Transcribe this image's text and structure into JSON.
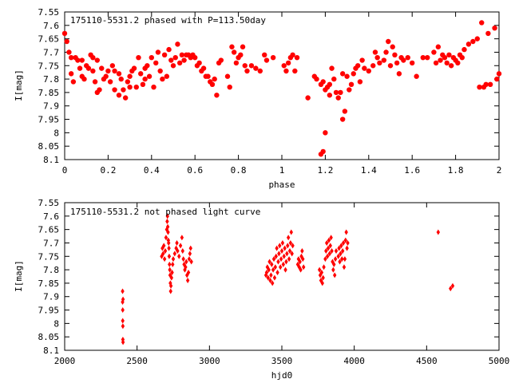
{
  "chart_data": [
    {
      "type": "scatter",
      "title": "175110-5531.2 phased with P=113.50day",
      "xlabel": "phase",
      "ylabel": "I[mag]",
      "xlim": [
        0,
        2
      ],
      "ylim": [
        8.1,
        7.55
      ],
      "y_inverted": true,
      "xticks": [
        0,
        0.2,
        0.4,
        0.6,
        0.8,
        1,
        1.2,
        1.4,
        1.6,
        1.8,
        2
      ],
      "xtick_labels": [
        "0",
        "0.2",
        "0.4",
        "0.6",
        "0.8",
        "1",
        "1.2",
        "1.4",
        "1.6",
        "1.8",
        "2"
      ],
      "yticks": [
        7.55,
        7.6,
        7.65,
        7.7,
        7.75,
        7.8,
        7.85,
        7.9,
        7.95,
        8,
        8.05,
        8.1
      ],
      "ytick_labels": [
        "7.55",
        "7.6",
        "7.65",
        "7.7",
        "7.75",
        "7.8",
        "7.85",
        "7.9",
        "7.95",
        "8",
        "8.05",
        "8.1"
      ],
      "grid": false,
      "marker_color": "#ff0000",
      "marker": "filled-circle",
      "points": [
        [
          0.0,
          7.63
        ],
        [
          0.01,
          7.66
        ],
        [
          0.02,
          7.7
        ],
        [
          0.03,
          7.72
        ],
        [
          0.03,
          7.78
        ],
        [
          0.04,
          7.81
        ],
        [
          0.05,
          7.72
        ],
        [
          0.06,
          7.73
        ],
        [
          0.07,
          7.76
        ],
        [
          0.08,
          7.73
        ],
        [
          0.08,
          7.79
        ],
        [
          0.09,
          7.8
        ],
        [
          0.1,
          7.75
        ],
        [
          0.11,
          7.76
        ],
        [
          0.12,
          7.71
        ],
        [
          0.13,
          7.72
        ],
        [
          0.13,
          7.77
        ],
        [
          0.14,
          7.81
        ],
        [
          0.15,
          7.73
        ],
        [
          0.15,
          7.85
        ],
        [
          0.16,
          7.84
        ],
        [
          0.17,
          7.76
        ],
        [
          0.18,
          7.8
        ],
        [
          0.19,
          7.79
        ],
        [
          0.2,
          7.77
        ],
        [
          0.21,
          7.81
        ],
        [
          0.22,
          7.75
        ],
        [
          0.23,
          7.77
        ],
        [
          0.23,
          7.84
        ],
        [
          0.25,
          7.78
        ],
        [
          0.25,
          7.86
        ],
        [
          0.26,
          7.8
        ],
        [
          0.27,
          7.84
        ],
        [
          0.28,
          7.87
        ],
        [
          0.29,
          7.81
        ],
        [
          0.3,
          7.79
        ],
        [
          0.3,
          7.83
        ],
        [
          0.31,
          7.77
        ],
        [
          0.32,
          7.76
        ],
        [
          0.33,
          7.83
        ],
        [
          0.34,
          7.72
        ],
        [
          0.35,
          7.78
        ],
        [
          0.36,
          7.82
        ],
        [
          0.37,
          7.76
        ],
        [
          0.37,
          7.8
        ],
        [
          0.38,
          7.75
        ],
        [
          0.39,
          7.79
        ],
        [
          0.4,
          7.72
        ],
        [
          0.41,
          7.83
        ],
        [
          0.42,
          7.74
        ],
        [
          0.43,
          7.7
        ],
        [
          0.44,
          7.77
        ],
        [
          0.45,
          7.8
        ],
        [
          0.46,
          7.71
        ],
        [
          0.47,
          7.79
        ],
        [
          0.48,
          7.69
        ],
        [
          0.49,
          7.73
        ],
        [
          0.5,
          7.75
        ],
        [
          0.51,
          7.72
        ],
        [
          0.52,
          7.67
        ],
        [
          0.53,
          7.74
        ],
        [
          0.54,
          7.71
        ],
        [
          0.55,
          7.73
        ],
        [
          0.56,
          7.71
        ],
        [
          0.57,
          7.71
        ],
        [
          0.58,
          7.72
        ],
        [
          0.59,
          7.71
        ],
        [
          0.6,
          7.72
        ],
        [
          0.61,
          7.75
        ],
        [
          0.62,
          7.74
        ],
        [
          0.63,
          7.77
        ],
        [
          0.64,
          7.76
        ],
        [
          0.65,
          7.79
        ],
        [
          0.66,
          7.79
        ],
        [
          0.67,
          7.81
        ],
        [
          0.68,
          7.82
        ],
        [
          0.69,
          7.8
        ],
        [
          0.7,
          7.86
        ],
        [
          0.71,
          7.74
        ],
        [
          0.72,
          7.73
        ],
        [
          0.75,
          7.79
        ],
        [
          0.76,
          7.83
        ],
        [
          0.77,
          7.68
        ],
        [
          0.78,
          7.7
        ],
        [
          0.79,
          7.74
        ],
        [
          0.8,
          7.72
        ],
        [
          0.81,
          7.71
        ],
        [
          0.82,
          7.68
        ],
        [
          0.83,
          7.75
        ],
        [
          0.84,
          7.77
        ],
        [
          0.86,
          7.75
        ],
        [
          0.88,
          7.76
        ],
        [
          0.9,
          7.77
        ],
        [
          0.92,
          7.71
        ],
        [
          0.93,
          7.73
        ],
        [
          0.96,
          7.72
        ],
        [
          1.01,
          7.75
        ],
        [
          1.02,
          7.77
        ],
        [
          1.03,
          7.74
        ],
        [
          1.04,
          7.72
        ],
        [
          1.05,
          7.71
        ],
        [
          1.06,
          7.77
        ],
        [
          1.07,
          7.72
        ],
        [
          1.12,
          7.87
        ],
        [
          1.15,
          7.79
        ],
        [
          1.16,
          7.8
        ],
        [
          1.18,
          7.82
        ],
        [
          1.18,
          8.08
        ],
        [
          1.19,
          7.81
        ],
        [
          1.19,
          8.07
        ],
        [
          1.2,
          7.84
        ],
        [
          1.2,
          8.0
        ],
        [
          1.21,
          7.83
        ],
        [
          1.22,
          7.82
        ],
        [
          1.22,
          7.86
        ],
        [
          1.23,
          7.76
        ],
        [
          1.24,
          7.8
        ],
        [
          1.25,
          7.85
        ],
        [
          1.26,
          7.87
        ],
        [
          1.27,
          7.85
        ],
        [
          1.28,
          7.95
        ],
        [
          1.28,
          7.78
        ],
        [
          1.29,
          7.92
        ],
        [
          1.3,
          7.79
        ],
        [
          1.31,
          7.84
        ],
        [
          1.32,
          7.82
        ],
        [
          1.33,
          7.78
        ],
        [
          1.34,
          7.76
        ],
        [
          1.35,
          7.75
        ],
        [
          1.36,
          7.81
        ],
        [
          1.37,
          7.73
        ],
        [
          1.38,
          7.76
        ],
        [
          1.4,
          7.77
        ],
        [
          1.42,
          7.75
        ],
        [
          1.43,
          7.7
        ],
        [
          1.44,
          7.72
        ],
        [
          1.45,
          7.74
        ],
        [
          1.47,
          7.73
        ],
        [
          1.48,
          7.7
        ],
        [
          1.49,
          7.66
        ],
        [
          1.5,
          7.75
        ],
        [
          1.51,
          7.68
        ],
        [
          1.52,
          7.71
        ],
        [
          1.53,
          7.74
        ],
        [
          1.54,
          7.78
        ],
        [
          1.55,
          7.72
        ],
        [
          1.56,
          7.73
        ],
        [
          1.58,
          7.72
        ],
        [
          1.6,
          7.74
        ],
        [
          1.62,
          7.79
        ],
        [
          1.65,
          7.72
        ],
        [
          1.67,
          7.72
        ],
        [
          1.7,
          7.7
        ],
        [
          1.71,
          7.74
        ],
        [
          1.72,
          7.68
        ],
        [
          1.73,
          7.73
        ],
        [
          1.74,
          7.71
        ],
        [
          1.75,
          7.72
        ],
        [
          1.76,
          7.74
        ],
        [
          1.77,
          7.71
        ],
        [
          1.78,
          7.75
        ],
        [
          1.79,
          7.72
        ],
        [
          1.8,
          7.73
        ],
        [
          1.81,
          7.74
        ],
        [
          1.82,
          7.71
        ],
        [
          1.83,
          7.72
        ],
        [
          1.84,
          7.69
        ],
        [
          1.86,
          7.67
        ],
        [
          1.88,
          7.66
        ],
        [
          1.9,
          7.65
        ],
        [
          1.91,
          7.83
        ],
        [
          1.92,
          7.59
        ],
        [
          1.93,
          7.83
        ],
        [
          1.94,
          7.82
        ],
        [
          1.95,
          7.63
        ],
        [
          1.96,
          7.82
        ],
        [
          1.98,
          7.61
        ],
        [
          1.99,
          7.8
        ],
        [
          2.0,
          7.78
        ]
      ]
    },
    {
      "type": "scatter",
      "title": "175110-5531.2 not phased light curve",
      "xlabel": "hjd0",
      "ylabel": "I[mag]",
      "xlim": [
        2000,
        5000
      ],
      "ylim": [
        8.1,
        7.55
      ],
      "y_inverted": true,
      "xticks": [
        2000,
        2500,
        3000,
        3500,
        4000,
        4500,
        5000
      ],
      "xtick_labels": [
        "2000",
        "2500",
        "3000",
        "3500",
        "4000",
        "4500",
        "5000"
      ],
      "yticks": [
        7.55,
        7.6,
        7.65,
        7.7,
        7.75,
        7.8,
        7.85,
        7.9,
        7.95,
        8,
        8.05,
        8.1
      ],
      "ytick_labels": [
        "7.55",
        "7.6",
        "7.65",
        "7.7",
        "7.75",
        "7.8",
        "7.85",
        "7.9",
        "7.95",
        "8",
        "8.05",
        "8.1"
      ],
      "grid": false,
      "marker_color": "#ff0000",
      "marker": "filled-diamond",
      "points": [
        [
          2400,
          7.88
        ],
        [
          2400,
          7.92
        ],
        [
          2401,
          7.95
        ],
        [
          2401,
          7.99
        ],
        [
          2402,
          8.01
        ],
        [
          2402,
          8.06
        ],
        [
          2403,
          8.07
        ],
        [
          2403,
          7.91
        ],
        [
          2670,
          7.75
        ],
        [
          2675,
          7.72
        ],
        [
          2680,
          7.74
        ],
        [
          2685,
          7.71
        ],
        [
          2690,
          7.76
        ],
        [
          2695,
          7.73
        ],
        [
          2700,
          7.68
        ],
        [
          2705,
          7.65
        ],
        [
          2708,
          7.62
        ],
        [
          2710,
          7.6
        ],
        [
          2712,
          7.64
        ],
        [
          2714,
          7.66
        ],
        [
          2716,
          7.69
        ],
        [
          2718,
          7.7
        ],
        [
          2720,
          7.72
        ],
        [
          2722,
          7.75
        ],
        [
          2724,
          7.78
        ],
        [
          2726,
          7.8
        ],
        [
          2728,
          7.82
        ],
        [
          2730,
          7.85
        ],
        [
          2732,
          7.88
        ],
        [
          2734,
          7.86
        ],
        [
          2738,
          7.83
        ],
        [
          2742,
          7.81
        ],
        [
          2746,
          7.78
        ],
        [
          2750,
          7.76
        ],
        [
          2760,
          7.74
        ],
        [
          2770,
          7.72
        ],
        [
          2775,
          7.7
        ],
        [
          2780,
          7.73
        ],
        [
          2790,
          7.75
        ],
        [
          2800,
          7.71
        ],
        [
          2810,
          7.68
        ],
        [
          2815,
          7.73
        ],
        [
          2820,
          7.76
        ],
        [
          2825,
          7.78
        ],
        [
          2830,
          7.8
        ],
        [
          2835,
          7.79
        ],
        [
          2840,
          7.77
        ],
        [
          2845,
          7.82
        ],
        [
          2850,
          7.84
        ],
        [
          2855,
          7.81
        ],
        [
          2860,
          7.76
        ],
        [
          2865,
          7.74
        ],
        [
          2870,
          7.72
        ],
        [
          2875,
          7.77
        ],
        [
          3390,
          7.82
        ],
        [
          3395,
          7.81
        ],
        [
          3400,
          7.79
        ],
        [
          3405,
          7.83
        ],
        [
          3410,
          7.8
        ],
        [
          3415,
          7.77
        ],
        [
          3420,
          7.84
        ],
        [
          3425,
          7.82
        ],
        [
          3430,
          7.78
        ],
        [
          3435,
          7.85
        ],
        [
          3440,
          7.8
        ],
        [
          3445,
          7.76
        ],
        [
          3450,
          7.83
        ],
        [
          3455,
          7.79
        ],
        [
          3460,
          7.75
        ],
        [
          3465,
          7.72
        ],
        [
          3470,
          7.81
        ],
        [
          3475,
          7.77
        ],
        [
          3480,
          7.74
        ],
        [
          3485,
          7.71
        ],
        [
          3490,
          7.79
        ],
        [
          3495,
          7.76
        ],
        [
          3500,
          7.73
        ],
        [
          3505,
          7.7
        ],
        [
          3510,
          7.78
        ],
        [
          3515,
          7.75
        ],
        [
          3520,
          7.72
        ],
        [
          3525,
          7.8
        ],
        [
          3530,
          7.77
        ],
        [
          3535,
          7.74
        ],
        [
          3540,
          7.71
        ],
        [
          3545,
          7.68
        ],
        [
          3550,
          7.76
        ],
        [
          3555,
          7.73
        ],
        [
          3560,
          7.7
        ],
        [
          3565,
          7.66
        ],
        [
          3570,
          7.74
        ],
        [
          3575,
          7.71
        ],
        [
          3610,
          7.78
        ],
        [
          3615,
          7.76
        ],
        [
          3620,
          7.79
        ],
        [
          3625,
          7.77
        ],
        [
          3630,
          7.8
        ],
        [
          3635,
          7.75
        ],
        [
          3640,
          7.73
        ],
        [
          3645,
          7.76
        ],
        [
          3650,
          7.79
        ],
        [
          3760,
          7.8
        ],
        [
          3765,
          7.82
        ],
        [
          3770,
          7.84
        ],
        [
          3775,
          7.81
        ],
        [
          3780,
          7.85
        ],
        [
          3785,
          7.83
        ],
        [
          3790,
          7.79
        ],
        [
          3800,
          7.76
        ],
        [
          3805,
          7.73
        ],
        [
          3810,
          7.7
        ],
        [
          3815,
          7.75
        ],
        [
          3820,
          7.72
        ],
        [
          3825,
          7.69
        ],
        [
          3830,
          7.74
        ],
        [
          3835,
          7.71
        ],
        [
          3840,
          7.68
        ],
        [
          3845,
          7.73
        ],
        [
          3850,
          7.77
        ],
        [
          3855,
          7.8
        ],
        [
          3860,
          7.78
        ],
        [
          3865,
          7.82
        ],
        [
          3870,
          7.76
        ],
        [
          3875,
          7.73
        ],
        [
          3890,
          7.75
        ],
        [
          3895,
          7.72
        ],
        [
          3900,
          7.77
        ],
        [
          3905,
          7.74
        ],
        [
          3910,
          7.71
        ],
        [
          3915,
          7.76
        ],
        [
          3920,
          7.73
        ],
        [
          3925,
          7.7
        ],
        [
          3930,
          7.79
        ],
        [
          3935,
          7.76
        ],
        [
          3940,
          7.69
        ],
        [
          3945,
          7.66
        ],
        [
          3950,
          7.72
        ],
        [
          3955,
          7.7
        ],
        [
          4580,
          7.66
        ],
        [
          4665,
          7.87
        ],
        [
          4680,
          7.86
        ]
      ]
    }
  ]
}
